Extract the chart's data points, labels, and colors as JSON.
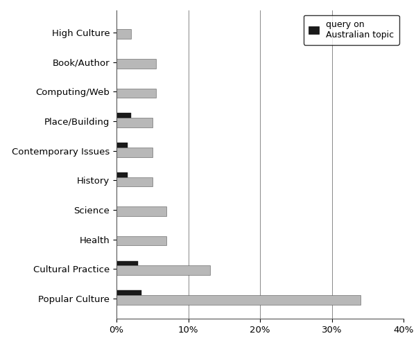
{
  "categories": [
    "Popular Culture",
    "Cultural Practice",
    "Health",
    "Science",
    "History",
    "Contemporary Issues",
    "Place/Building",
    "Computing/Web",
    "Book/Author",
    "High Culture"
  ],
  "gray_values": [
    34.0,
    13.0,
    7.0,
    7.0,
    5.0,
    5.0,
    5.0,
    5.5,
    5.5,
    2.0
  ],
  "black_values": [
    3.5,
    3.0,
    0.0,
    0.0,
    1.5,
    1.5,
    2.0,
    0.0,
    0.0,
    0.0
  ],
  "gray_color": "#b8b8b8",
  "black_color": "#1a1a1a",
  "xlim": [
    0,
    40
  ],
  "xtick_values": [
    0,
    10,
    20,
    30,
    40
  ],
  "xtick_labels": [
    "0%",
    "10%",
    "20%",
    "30%",
    "40%"
  ],
  "legend_label": "query on\nAustralian topic",
  "background_color": "#ffffff",
  "gray_bar_height": 0.32,
  "black_bar_height": 0.16,
  "figure_width": 6.0,
  "figure_height": 5.11
}
